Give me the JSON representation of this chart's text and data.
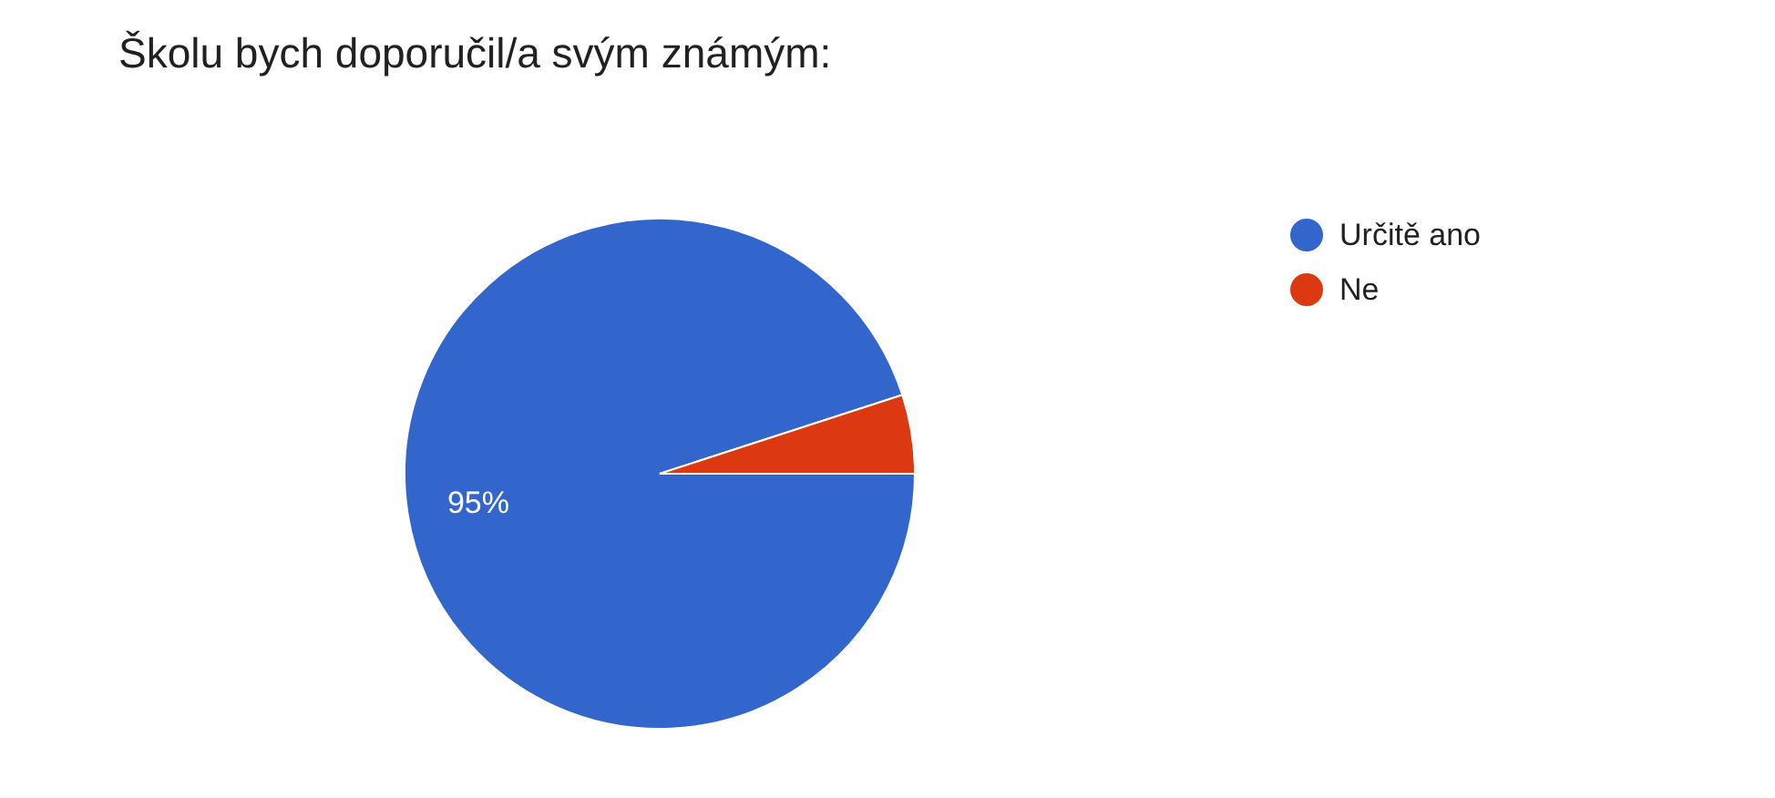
{
  "chart_data": {
    "type": "pie",
    "title": "Školu bych doporučil/a svým známým:",
    "categories": [
      "Určitě ano",
      "Ne"
    ],
    "values": [
      95,
      5
    ],
    "colors": [
      "#3366cc",
      "#dc3912"
    ],
    "value_labels": [
      "95%",
      null
    ],
    "legend": "right"
  }
}
